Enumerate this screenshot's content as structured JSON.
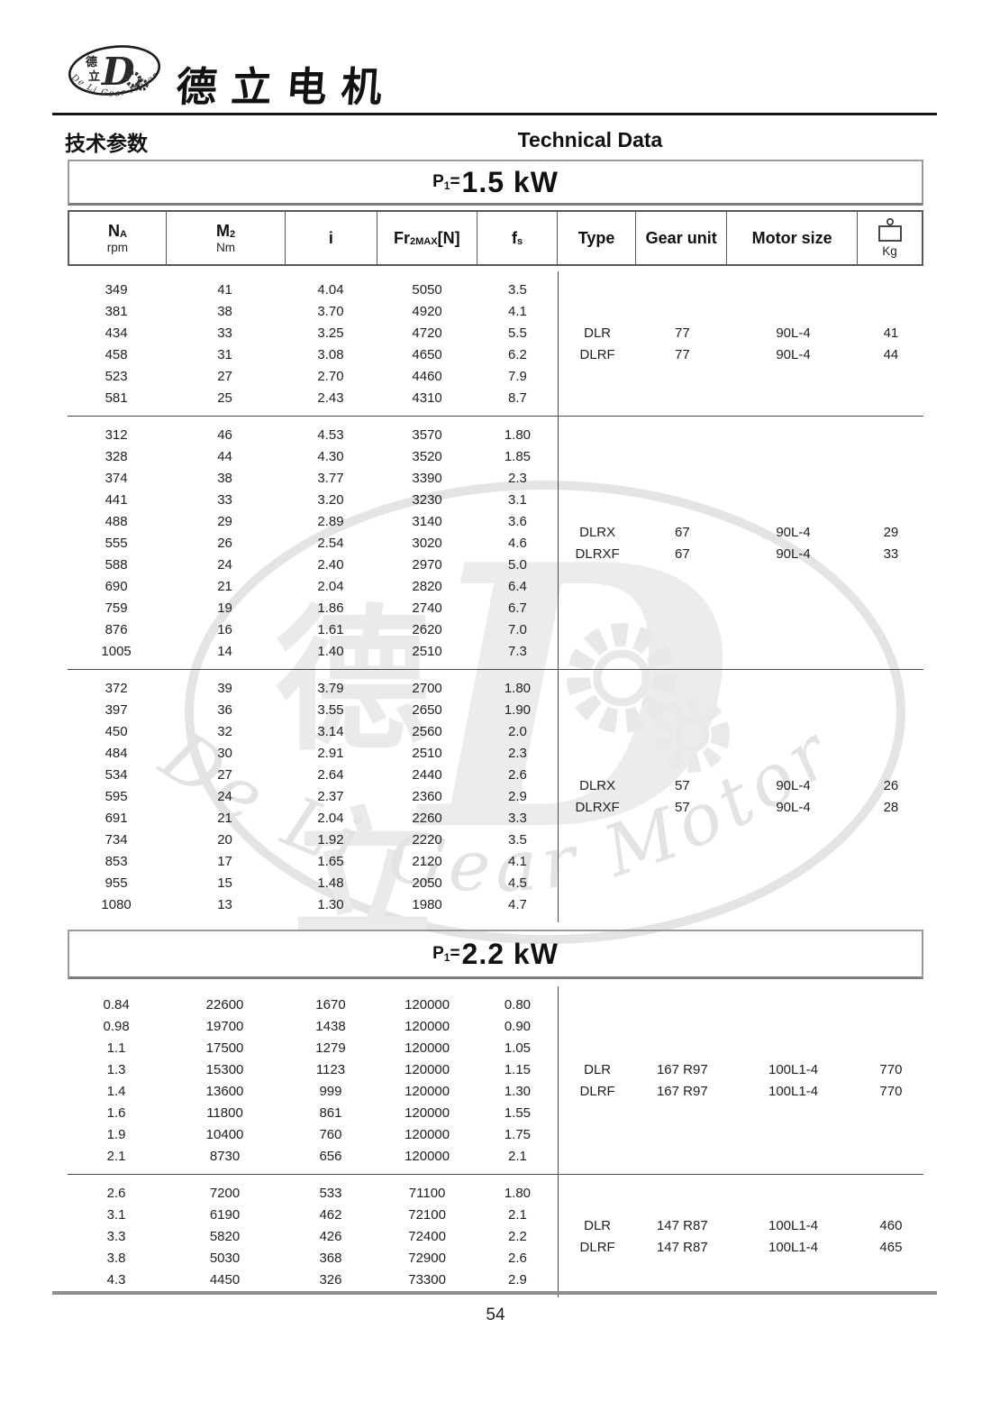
{
  "brand": {
    "name": "德立电机",
    "logo": {
      "cjk_top": "德",
      "cjk_bottom": "立",
      "letter": "D",
      "arc_text": "De Li Gear Motor"
    }
  },
  "subheader": {
    "zh": "技术参数",
    "en": "Technical Data"
  },
  "header_cols": [
    {
      "main": "N",
      "sub": "A",
      "unit": "rpm"
    },
    {
      "main": "M",
      "sub": "2",
      "unit": "Nm"
    },
    {
      "main": "i"
    },
    {
      "main": "Fr",
      "sub": "2MAX",
      "tail": "[N]"
    },
    {
      "main": "f",
      "sub": "s"
    },
    {
      "main": "Type"
    },
    {
      "main": "Gear unit"
    },
    {
      "main": "Motor size"
    },
    {
      "icon": "weight-icon",
      "unit": "Kg"
    }
  ],
  "watermark": {
    "cjk_top": "德",
    "cjk_bottom": "立",
    "letter": "D",
    "arc_text": "De Li Gear Motor"
  },
  "sections": [
    {
      "power": {
        "p": "P",
        "sub": "1",
        "eq": "=",
        "value": "1.5 kW"
      },
      "blocks": [
        {
          "rows": [
            [
              "349",
              "41",
              "4.04",
              "5050",
              "3.5"
            ],
            [
              "381",
              "38",
              "3.70",
              "4920",
              "4.1"
            ],
            [
              "434",
              "33",
              "3.25",
              "4720",
              "5.5"
            ],
            [
              "458",
              "31",
              "3.08",
              "4650",
              "6.2"
            ],
            [
              "523",
              "27",
              "2.70",
              "4460",
              "7.9"
            ],
            [
              "581",
              "25",
              "2.43",
              "4310",
              "8.7"
            ]
          ],
          "info": [
            [
              "DLR",
              "77",
              "90L-4",
              "41"
            ],
            [
              "DLRF",
              "77",
              "90L-4",
              "44"
            ]
          ]
        },
        {
          "rows": [
            [
              "312",
              "46",
              "4.53",
              "3570",
              "1.80"
            ],
            [
              "328",
              "44",
              "4.30",
              "3520",
              "1.85"
            ],
            [
              "374",
              "38",
              "3.77",
              "3390",
              "2.3"
            ],
            [
              "441",
              "33",
              "3.20",
              "3230",
              "3.1"
            ],
            [
              "488",
              "29",
              "2.89",
              "3140",
              "3.6"
            ],
            [
              "555",
              "26",
              "2.54",
              "3020",
              "4.6"
            ],
            [
              "588",
              "24",
              "2.40",
              "2970",
              "5.0"
            ],
            [
              "690",
              "21",
              "2.04",
              "2820",
              "6.4"
            ],
            [
              "759",
              "19",
              "1.86",
              "2740",
              "6.7"
            ],
            [
              "876",
              "16",
              "1.61",
              "2620",
              "7.0"
            ],
            [
              "1005",
              "14",
              "1.40",
              "2510",
              "7.3"
            ]
          ],
          "info": [
            [
              "DLRX",
              "67",
              "90L-4",
              "29"
            ],
            [
              "DLRXF",
              "67",
              "90L-4",
              "33"
            ]
          ]
        },
        {
          "rows": [
            [
              "372",
              "39",
              "3.79",
              "2700",
              "1.80"
            ],
            [
              "397",
              "36",
              "3.55",
              "2650",
              "1.90"
            ],
            [
              "450",
              "32",
              "3.14",
              "2560",
              "2.0"
            ],
            [
              "484",
              "30",
              "2.91",
              "2510",
              "2.3"
            ],
            [
              "534",
              "27",
              "2.64",
              "2440",
              "2.6"
            ],
            [
              "595",
              "24",
              "2.37",
              "2360",
              "2.9"
            ],
            [
              "691",
              "21",
              "2.04",
              "2260",
              "3.3"
            ],
            [
              "734",
              "20",
              "1.92",
              "2220",
              "3.5"
            ],
            [
              "853",
              "17",
              "1.65",
              "2120",
              "4.1"
            ],
            [
              "955",
              "15",
              "1.48",
              "2050",
              "4.5"
            ],
            [
              "1080",
              "13",
              "1.30",
              "1980",
              "4.7"
            ]
          ],
          "info": [
            [
              "DLRX",
              "57",
              "90L-4",
              "26"
            ],
            [
              "DLRXF",
              "57",
              "90L-4",
              "28"
            ]
          ]
        }
      ]
    },
    {
      "power": {
        "p": "P",
        "sub": "1",
        "eq": "=",
        "value": "2.2 kW"
      },
      "blocks": [
        {
          "rows": [
            [
              "0.84",
              "22600",
              "1670",
              "120000",
              "0.80"
            ],
            [
              "0.98",
              "19700",
              "1438",
              "120000",
              "0.90"
            ],
            [
              "1.1",
              "17500",
              "1279",
              "120000",
              "1.05"
            ],
            [
              "1.3",
              "15300",
              "1123",
              "120000",
              "1.15"
            ],
            [
              "1.4",
              "13600",
              "999",
              "120000",
              "1.30"
            ],
            [
              "1.6",
              "11800",
              "861",
              "120000",
              "1.55"
            ],
            [
              "1.9",
              "10400",
              "760",
              "120000",
              "1.75"
            ],
            [
              "2.1",
              "8730",
              "656",
              "120000",
              "2.1"
            ]
          ],
          "info": [
            [
              "DLR",
              "167 R97",
              "100L1-4",
              "770"
            ],
            [
              "DLRF",
              "167 R97",
              "100L1-4",
              "770"
            ]
          ]
        },
        {
          "rows": [
            [
              "2.6",
              "7200",
              "533",
              "71100",
              "1.80"
            ],
            [
              "3.1",
              "6190",
              "462",
              "72100",
              "2.1"
            ],
            [
              "3.3",
              "5820",
              "426",
              "72400",
              "2.2"
            ],
            [
              "3.8",
              "5030",
              "368",
              "72900",
              "2.6"
            ],
            [
              "4.3",
              "4450",
              "326",
              "73300",
              "2.9"
            ]
          ],
          "info": [
            [
              "DLR",
              "147 R87",
              "100L1-4",
              "460"
            ],
            [
              "DLRF",
              "147 R87",
              "100L1-4",
              "465"
            ]
          ]
        }
      ]
    }
  ],
  "footer": {
    "page_number": "54"
  }
}
